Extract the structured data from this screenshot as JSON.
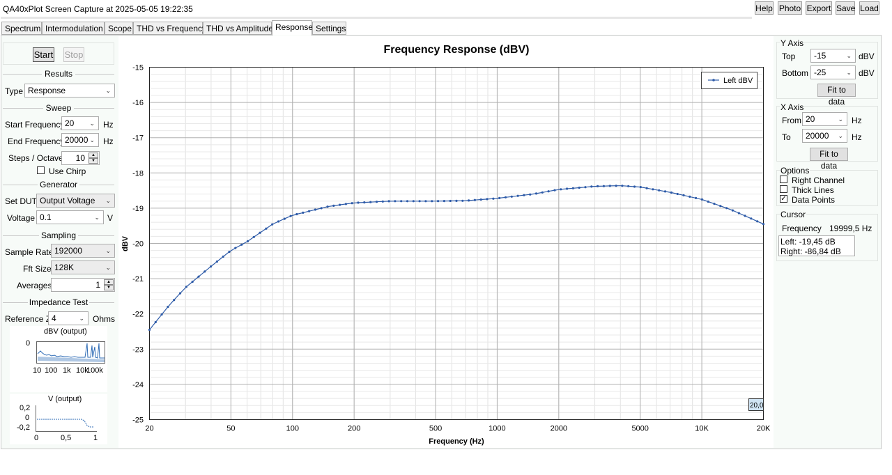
{
  "window": {
    "title": "QA40xPlot Screen Capture at 2025-05-05 19:22:35"
  },
  "toolbar": {
    "help": "Help",
    "photo": "Photo",
    "export": "Export",
    "save": "Save",
    "load": "Load"
  },
  "tabs": [
    "Spectrum",
    "Intermodulation",
    "Scope",
    "THD vs Frequency",
    "THD vs Amplitude",
    "Response",
    "Settings"
  ],
  "left": {
    "start": "Start",
    "stop": "Stop",
    "results": {
      "title": "Results",
      "type_label": "Type",
      "type_value": "Response"
    },
    "sweep": {
      "title": "Sweep",
      "start_freq_label": "Start Frequency",
      "start_freq_value": "20",
      "start_freq_unit": "Hz",
      "end_freq_label": "End Frequency",
      "end_freq_value": "20000",
      "end_freq_unit": "Hz",
      "steps_label": "Steps / Octave",
      "steps_value": "10",
      "chirp_label": "Use Chirp"
    },
    "generator": {
      "title": "Generator",
      "dut_label": "Set DUT",
      "dut_value": "Output Voltage",
      "voltage_label": "Voltage",
      "voltage_value": "0.1",
      "voltage_unit": "V"
    },
    "sampling": {
      "title": "Sampling",
      "rate_label": "Sample Rate",
      "rate_value": "192000",
      "fft_label": "Fft Size",
      "fft_value": "128K",
      "avg_label": "Averages",
      "avg_value": "1"
    },
    "impedance": {
      "title": "Impedance Test",
      "ref_label": "Reference Z",
      "ref_value": "4",
      "ref_unit": "Ohms"
    },
    "mini1": {
      "title": "dBV (output)",
      "y0": "0",
      "xticks": [
        "10",
        "100",
        "1k",
        "10k",
        "100k"
      ]
    },
    "mini2": {
      "title": "V (output)",
      "yticks": [
        "0,2",
        "0",
        "-0,2"
      ],
      "xticks": [
        "0",
        "0,5",
        "1"
      ]
    }
  },
  "right": {
    "yaxis": {
      "title": "Y Axis",
      "top_label": "Top",
      "top_value": "-15",
      "top_unit": "dBV",
      "bottom_label": "Bottom",
      "bottom_value": "-25",
      "bottom_unit": "dBV",
      "fit": "Fit to data"
    },
    "xaxis": {
      "title": "X Axis",
      "from_label": "From",
      "from_value": "20",
      "from_unit": "Hz",
      "to_label": "To",
      "to_value": "20000",
      "to_unit": "Hz",
      "fit": "Fit to data"
    },
    "options": {
      "title": "Options",
      "right_channel": "Right Channel",
      "thick_lines": "Thick Lines",
      "data_points": "Data Points",
      "right_channel_checked": false,
      "thick_lines_checked": false,
      "data_points_checked": true
    },
    "cursor": {
      "title": "Cursor",
      "freq_label": "Frequency",
      "freq_value": "19999,5 Hz",
      "left": "Left: -19,45 dB",
      "right": "Right: -86,84 dB"
    }
  },
  "chart_data": {
    "type": "line",
    "title": "Frequency Response (dBV)",
    "xlabel": "Frequency (Hz)",
    "ylabel": "dBV",
    "xscale": "log",
    "xlim": [
      20,
      20000
    ],
    "ylim": [
      -25,
      -15
    ],
    "xticks": [
      20,
      50,
      100,
      200,
      500,
      1000,
      2000,
      5000,
      10000,
      20000
    ],
    "xtick_labels": [
      "20",
      "50",
      "100",
      "200",
      "500",
      "1000",
      "2000",
      "5000",
      "10K",
      "20K"
    ],
    "yticks": [
      -15,
      -16,
      -17,
      -18,
      -19,
      -20,
      -21,
      -22,
      -23,
      -24,
      -25
    ],
    "grid": true,
    "legend": "top-right",
    "cursor_label": "20,0",
    "series": [
      {
        "name": "Left dBV",
        "color": "#2e5ba8",
        "x": [
          20,
          25,
          30,
          40,
          50,
          60,
          80,
          100,
          150,
          200,
          300,
          400,
          500,
          700,
          1000,
          1500,
          2000,
          3000,
          4000,
          5000,
          7000,
          10000,
          14000,
          20000
        ],
        "y": [
          -22.45,
          -21.75,
          -21.25,
          -20.65,
          -20.2,
          -19.95,
          -19.45,
          -19.2,
          -18.95,
          -18.85,
          -18.8,
          -18.8,
          -18.8,
          -18.79,
          -18.72,
          -18.6,
          -18.47,
          -18.38,
          -18.36,
          -18.4,
          -18.55,
          -18.75,
          -19.05,
          -19.45
        ]
      }
    ]
  },
  "colors": {
    "accent": "#2e5ba8",
    "tab_active": "#ffffff",
    "panel_bg": "#f7fbf8"
  }
}
